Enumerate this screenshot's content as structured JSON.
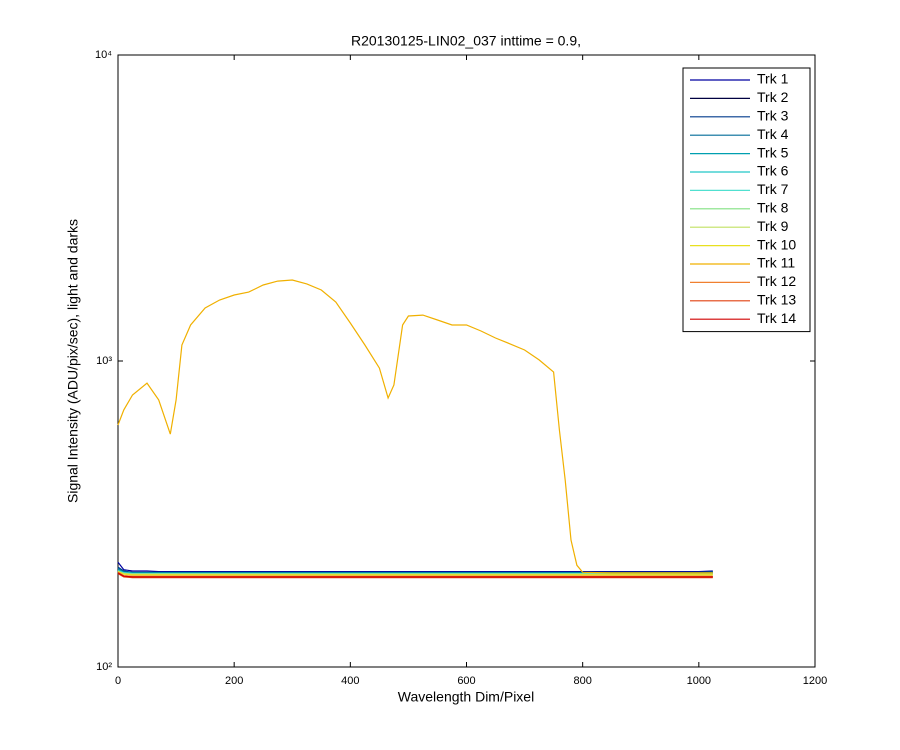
{
  "chart_data": {
    "type": "line",
    "title": "R20130125-LIN02_037 inttime = 0.9,",
    "xlabel": "Wavelength Dim/Pixel",
    "ylabel": "Signal Intensity (ADU/pix/sec), light and darks",
    "ylog": true,
    "xlim": [
      0,
      1200
    ],
    "xticks": [
      0,
      200,
      400,
      600,
      800,
      1000,
      1200
    ],
    "ylim": [
      100,
      10000
    ],
    "yticks": [
      {
        "value": 100,
        "label": "10²"
      },
      {
        "value": 1000,
        "label": "10³"
      },
      {
        "value": 10000,
        "label": "10⁴"
      }
    ],
    "legend": "top-right",
    "x": [
      0,
      10,
      25,
      50,
      70,
      90,
      100,
      110,
      125,
      150,
      175,
      200,
      225,
      250,
      275,
      300,
      325,
      350,
      375,
      400,
      425,
      450,
      465,
      475,
      490,
      500,
      525,
      550,
      575,
      600,
      625,
      650,
      675,
      700,
      725,
      750,
      760,
      770,
      780,
      790,
      800,
      850,
      900,
      950,
      1000,
      1024
    ],
    "series": [
      {
        "name": "Trk 1",
        "color": "#0000a0",
        "values": [
          220,
          208,
          206,
          206,
          205,
          205,
          205,
          205,
          205,
          205,
          205,
          205,
          205,
          205,
          205,
          205,
          205,
          205,
          205,
          205,
          205,
          205,
          205,
          205,
          205,
          205,
          205,
          205,
          205,
          205,
          205,
          205,
          205,
          205,
          205,
          205,
          205,
          205,
          205,
          205,
          205,
          205,
          205,
          205,
          205,
          206
        ]
      },
      {
        "name": "Trk 2",
        "color": "#000040",
        "values": [
          205,
          198,
          197,
          197,
          197,
          197,
          197,
          197,
          197,
          197,
          197,
          197,
          197,
          197,
          197,
          197,
          197,
          197,
          197,
          197,
          197,
          197,
          197,
          197,
          197,
          197,
          197,
          197,
          197,
          197,
          197,
          197,
          197,
          197,
          197,
          197,
          197,
          197,
          197,
          197,
          197,
          197,
          197,
          197,
          197,
          197
        ]
      },
      {
        "name": "Trk 3",
        "color": "#003a8c",
        "values": [
          212,
          206,
          204,
          204,
          204,
          204,
          204,
          204,
          204,
          204,
          204,
          204,
          204,
          204,
          204,
          204,
          204,
          204,
          204,
          204,
          204,
          204,
          204,
          204,
          204,
          204,
          204,
          204,
          204,
          204,
          204,
          204,
          204,
          204,
          204,
          204,
          204,
          204,
          204,
          204,
          204,
          204,
          204,
          204,
          204,
          205
        ]
      },
      {
        "name": "Trk 4",
        "color": "#006c99",
        "values": [
          210,
          205,
          203,
          203,
          203,
          203,
          203,
          203,
          203,
          203,
          203,
          203,
          203,
          203,
          203,
          203,
          203,
          203,
          203,
          203,
          203,
          203,
          203,
          203,
          203,
          203,
          203,
          203,
          203,
          203,
          203,
          203,
          203,
          203,
          203,
          203,
          203,
          203,
          203,
          203,
          203,
          203,
          203,
          203,
          203,
          204
        ]
      },
      {
        "name": "Trk 5",
        "color": "#009fb0",
        "values": [
          208,
          204,
          203,
          203,
          203,
          203,
          203,
          203,
          203,
          203,
          203,
          203,
          203,
          203,
          203,
          203,
          203,
          203,
          203,
          203,
          203,
          203,
          203,
          203,
          203,
          203,
          203,
          203,
          203,
          203,
          203,
          203,
          203,
          203,
          203,
          203,
          203,
          203,
          203,
          203,
          203,
          203,
          203,
          203,
          203,
          203
        ]
      },
      {
        "name": "Trk 6",
        "color": "#20c8c8",
        "values": [
          207,
          203,
          202,
          202,
          202,
          202,
          202,
          202,
          202,
          202,
          202,
          202,
          202,
          202,
          202,
          202,
          202,
          202,
          202,
          202,
          202,
          202,
          202,
          202,
          202,
          202,
          202,
          202,
          202,
          202,
          202,
          202,
          202,
          202,
          202,
          202,
          202,
          202,
          202,
          202,
          202,
          202,
          202,
          202,
          202,
          202
        ]
      },
      {
        "name": "Trk 7",
        "color": "#50e0d0",
        "values": [
          206,
          203,
          202,
          202,
          202,
          202,
          202,
          202,
          202,
          202,
          202,
          202,
          202,
          202,
          202,
          202,
          202,
          202,
          202,
          202,
          202,
          202,
          202,
          202,
          202,
          202,
          202,
          202,
          202,
          202,
          202,
          202,
          202,
          202,
          202,
          202,
          202,
          202,
          202,
          202,
          202,
          202,
          202,
          202,
          202,
          202
        ]
      },
      {
        "name": "Trk 8",
        "color": "#80e080",
        "values": [
          206,
          202,
          201,
          201,
          201,
          201,
          201,
          201,
          201,
          201,
          201,
          201,
          201,
          201,
          201,
          201,
          201,
          201,
          201,
          201,
          201,
          201,
          201,
          201,
          201,
          201,
          201,
          201,
          201,
          201,
          201,
          201,
          201,
          201,
          201,
          201,
          201,
          201,
          201,
          201,
          201,
          201,
          201,
          201,
          201,
          201
        ]
      },
      {
        "name": "Trk 9",
        "color": "#c0e060",
        "values": [
          205,
          202,
          201,
          201,
          201,
          201,
          201,
          201,
          201,
          201,
          201,
          201,
          201,
          201,
          201,
          201,
          201,
          201,
          201,
          201,
          201,
          201,
          201,
          201,
          201,
          201,
          201,
          201,
          201,
          201,
          201,
          201,
          201,
          201,
          201,
          201,
          201,
          201,
          201,
          201,
          201,
          201,
          201,
          201,
          201,
          201
        ]
      },
      {
        "name": "Trk 10",
        "color": "#e8e020",
        "values": [
          205,
          201,
          200,
          200,
          200,
          200,
          200,
          200,
          200,
          200,
          200,
          200,
          200,
          200,
          200,
          200,
          200,
          200,
          200,
          200,
          200,
          200,
          200,
          200,
          200,
          200,
          200,
          200,
          200,
          200,
          200,
          200,
          200,
          200,
          200,
          200,
          200,
          200,
          200,
          200,
          200,
          200,
          200,
          200,
          200,
          200
        ]
      },
      {
        "name": "Trk 11",
        "color": "#f0b000",
        "values": [
          618,
          692,
          774,
          847,
          746,
          577,
          746,
          1128,
          1311,
          1490,
          1583,
          1643,
          1680,
          1771,
          1825,
          1840,
          1786,
          1706,
          1559,
          1331,
          1128,
          948,
          757,
          835,
          1311,
          1403,
          1413,
          1361,
          1311,
          1311,
          1253,
          1189,
          1137,
          1086,
          1008,
          920,
          595,
          408,
          260,
          215,
          204,
          203,
          203,
          203,
          203,
          203
        ]
      },
      {
        "name": "Trk 12",
        "color": "#f08030",
        "values": [
          204,
          199,
          198,
          198,
          198,
          198,
          198,
          198,
          198,
          198,
          198,
          198,
          198,
          198,
          198,
          198,
          198,
          198,
          198,
          198,
          198,
          198,
          198,
          198,
          198,
          198,
          198,
          198,
          198,
          198,
          198,
          198,
          198,
          198,
          198,
          198,
          198,
          198,
          198,
          198,
          198,
          198,
          198,
          198,
          198,
          198
        ]
      },
      {
        "name": "Trk 13",
        "color": "#e04010",
        "values": [
          202,
          197,
          196,
          196,
          196,
          196,
          196,
          196,
          196,
          196,
          196,
          196,
          196,
          196,
          196,
          196,
          196,
          196,
          196,
          196,
          196,
          196,
          196,
          196,
          196,
          196,
          196,
          196,
          196,
          196,
          196,
          196,
          196,
          196,
          196,
          196,
          196,
          196,
          196,
          196,
          196,
          196,
          196,
          196,
          196,
          196
        ]
      },
      {
        "name": "Trk 14",
        "color": "#d00000",
        "values": [
          203,
          198,
          197,
          197,
          197,
          197,
          197,
          197,
          197,
          197,
          197,
          197,
          197,
          197,
          197,
          197,
          197,
          197,
          197,
          197,
          197,
          197,
          197,
          197,
          197,
          197,
          197,
          197,
          197,
          197,
          197,
          197,
          197,
          197,
          197,
          197,
          197,
          197,
          197,
          197,
          197,
          197,
          197,
          197,
          197,
          197
        ]
      }
    ]
  }
}
